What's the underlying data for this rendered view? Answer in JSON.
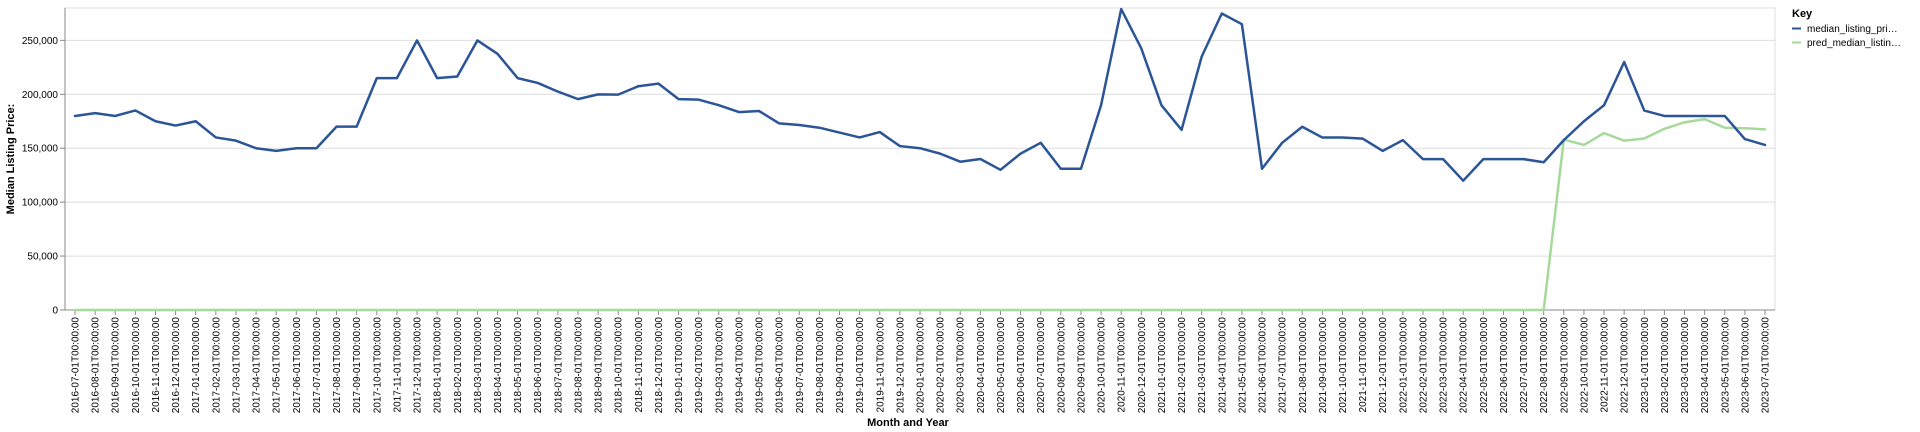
{
  "chart_data": {
    "type": "line",
    "xlabel": "Month and Year",
    "ylabel": "Median Listing Price:",
    "ylim": [
      0,
      280000
    ],
    "y_ticks": [
      0,
      50000,
      100000,
      150000,
      200000,
      250000
    ],
    "y_tick_labels": [
      "0",
      "50,000",
      "100,000",
      "150,000",
      "200,000",
      "250,000"
    ],
    "grid": "horizontal",
    "legend": {
      "title": "Key",
      "placement": "top-right",
      "entries": [
        "median_listing_pri…",
        "pred_median_listin…"
      ]
    },
    "x": [
      "2016-07-01T00:00:00",
      "2016-08-01T00:00:00",
      "2016-09-01T00:00:00",
      "2016-10-01T00:00:00",
      "2016-11-01T00:00:00",
      "2016-12-01T00:00:00",
      "2017-01-01T00:00:00",
      "2017-02-01T00:00:00",
      "2017-03-01T00:00:00",
      "2017-04-01T00:00:00",
      "2017-05-01T00:00:00",
      "2017-06-01T00:00:00",
      "2017-07-01T00:00:00",
      "2017-08-01T00:00:00",
      "2017-09-01T00:00:00",
      "2017-10-01T00:00:00",
      "2017-11-01T00:00:00",
      "2017-12-01T00:00:00",
      "2018-01-01T00:00:00",
      "2018-02-01T00:00:00",
      "2018-03-01T00:00:00",
      "2018-04-01T00:00:00",
      "2018-05-01T00:00:00",
      "2018-06-01T00:00:00",
      "2018-07-01T00:00:00",
      "2018-08-01T00:00:00",
      "2018-09-01T00:00:00",
      "2018-10-01T00:00:00",
      "2018-11-01T00:00:00",
      "2018-12-01T00:00:00",
      "2019-01-01T00:00:00",
      "2019-02-01T00:00:00",
      "2019-03-01T00:00:00",
      "2019-04-01T00:00:00",
      "2019-05-01T00:00:00",
      "2019-06-01T00:00:00",
      "2019-07-01T00:00:00",
      "2019-08-01T00:00:00",
      "2019-09-01T00:00:00",
      "2019-10-01T00:00:00",
      "2019-11-01T00:00:00",
      "2019-12-01T00:00:00",
      "2020-01-01T00:00:00",
      "2020-02-01T00:00:00",
      "2020-03-01T00:00:00",
      "2020-04-01T00:00:00",
      "2020-05-01T00:00:00",
      "2020-06-01T00:00:00",
      "2020-07-01T00:00:00",
      "2020-08-01T00:00:00",
      "2020-09-01T00:00:00",
      "2020-10-01T00:00:00",
      "2020-11-01T00:00:00",
      "2020-12-01T00:00:00",
      "2021-01-01T00:00:00",
      "2021-02-01T00:00:00",
      "2021-03-01T00:00:00",
      "2021-04-01T00:00:00",
      "2021-05-01T00:00:00",
      "2021-06-01T00:00:00",
      "2021-07-01T00:00:00",
      "2021-08-01T00:00:00",
      "2021-09-01T00:00:00",
      "2021-10-01T00:00:00",
      "2021-11-01T00:00:00",
      "2021-12-01T00:00:00",
      "2022-01-01T00:00:00",
      "2022-02-01T00:00:00",
      "2022-03-01T00:00:00",
      "2022-04-01T00:00:00",
      "2022-05-01T00:00:00",
      "2022-06-01T00:00:00",
      "2022-07-01T00:00:00",
      "2022-08-01T00:00:00",
      "2022-09-01T00:00:00",
      "2022-10-01T00:00:00",
      "2022-11-01T00:00:00",
      "2022-12-01T00:00:00",
      "2023-01-01T00:00:00",
      "2023-02-01T00:00:00",
      "2023-03-01T00:00:00",
      "2023-04-01T00:00:00",
      "2023-05-01T00:00:00",
      "2023-06-01T00:00:00",
      "2023-07-01T00:00:00"
    ],
    "series": [
      {
        "name": "median_listing_pri…",
        "color": "#2b5597",
        "values": [
          179900,
          182500,
          179900,
          185000,
          175000,
          171000,
          175000,
          160000,
          157000,
          150000,
          147500,
          150000,
          150000,
          170000,
          170000,
          215000,
          215000,
          249900,
          215000,
          216500,
          249900,
          237500,
          215000,
          210500,
          202500,
          195500,
          199900,
          199700,
          207500,
          209900,
          195500,
          195000,
          189900,
          183500,
          184500,
          173000,
          171500,
          169000,
          164500,
          160000,
          165000,
          152000,
          150000,
          145000,
          137500,
          140000,
          130000,
          145000,
          155000,
          131000,
          130900,
          189900,
          279000,
          242500,
          189900,
          167000,
          234900,
          274900,
          265000,
          131000,
          155000,
          169900,
          159900,
          159900,
          158900,
          147500,
          157500,
          139900,
          139900,
          119900,
          139900,
          139900,
          139900,
          137000,
          157500,
          175000,
          189900,
          229900,
          184900,
          179900,
          179900,
          179900,
          179900,
          158500,
          153000
        ]
      },
      {
        "name": "pred_median_listin…",
        "color": "#a6d99a",
        "values": [
          0,
          0,
          0,
          0,
          0,
          0,
          0,
          0,
          0,
          0,
          0,
          0,
          0,
          0,
          0,
          0,
          0,
          0,
          0,
          0,
          0,
          0,
          0,
          0,
          0,
          0,
          0,
          0,
          0,
          0,
          0,
          0,
          0,
          0,
          0,
          0,
          0,
          0,
          0,
          0,
          0,
          0,
          0,
          0,
          0,
          0,
          0,
          0,
          0,
          0,
          0,
          0,
          0,
          0,
          0,
          0,
          0,
          0,
          0,
          0,
          0,
          0,
          0,
          0,
          0,
          0,
          0,
          0,
          0,
          0,
          0,
          0,
          0,
          0,
          158000,
          153000,
          164000,
          157000,
          159000,
          168000,
          174000,
          177000,
          169000,
          168500,
          167500
        ]
      }
    ]
  }
}
